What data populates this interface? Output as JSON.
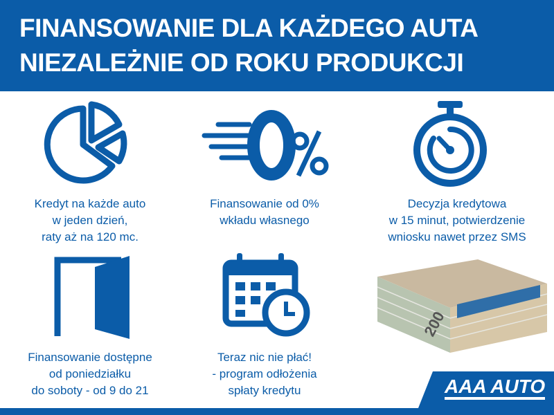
{
  "header": {
    "line1": "FINANSOWANIE DLA KAŻDEGO AUTA",
    "line2": "NIEZALEŻNIE OD ROKU PRODUKCJI"
  },
  "features": [
    {
      "icon": "pie-chart-icon",
      "lines": [
        "Kredyt na każde auto",
        "w jeden dzień,",
        "raty aż na 120 mc."
      ]
    },
    {
      "icon": "zero-percent-icon",
      "lines": [
        "Finansowanie od 0%",
        "wkładu własnego"
      ]
    },
    {
      "icon": "stopwatch-icon",
      "lines": [
        "Decyzja kredytowa",
        "w 15 minut, potwierdzenie",
        "wniosku nawet przez SMS"
      ]
    },
    {
      "icon": "open-door-icon",
      "lines": [
        "Finansowanie dostępne",
        "od poniedziałku",
        "do soboty - od 9 do 21"
      ]
    },
    {
      "icon": "calendar-clock-icon",
      "lines": [
        "Teraz nic nie płać!",
        "- program odłożenia",
        "spłaty kredytu"
      ]
    }
  ],
  "money_image": {
    "icon": "banknotes-icon",
    "note_value": "200"
  },
  "logo": "AAA AUTO",
  "colors": {
    "brand_blue": "#0b5ca8"
  }
}
